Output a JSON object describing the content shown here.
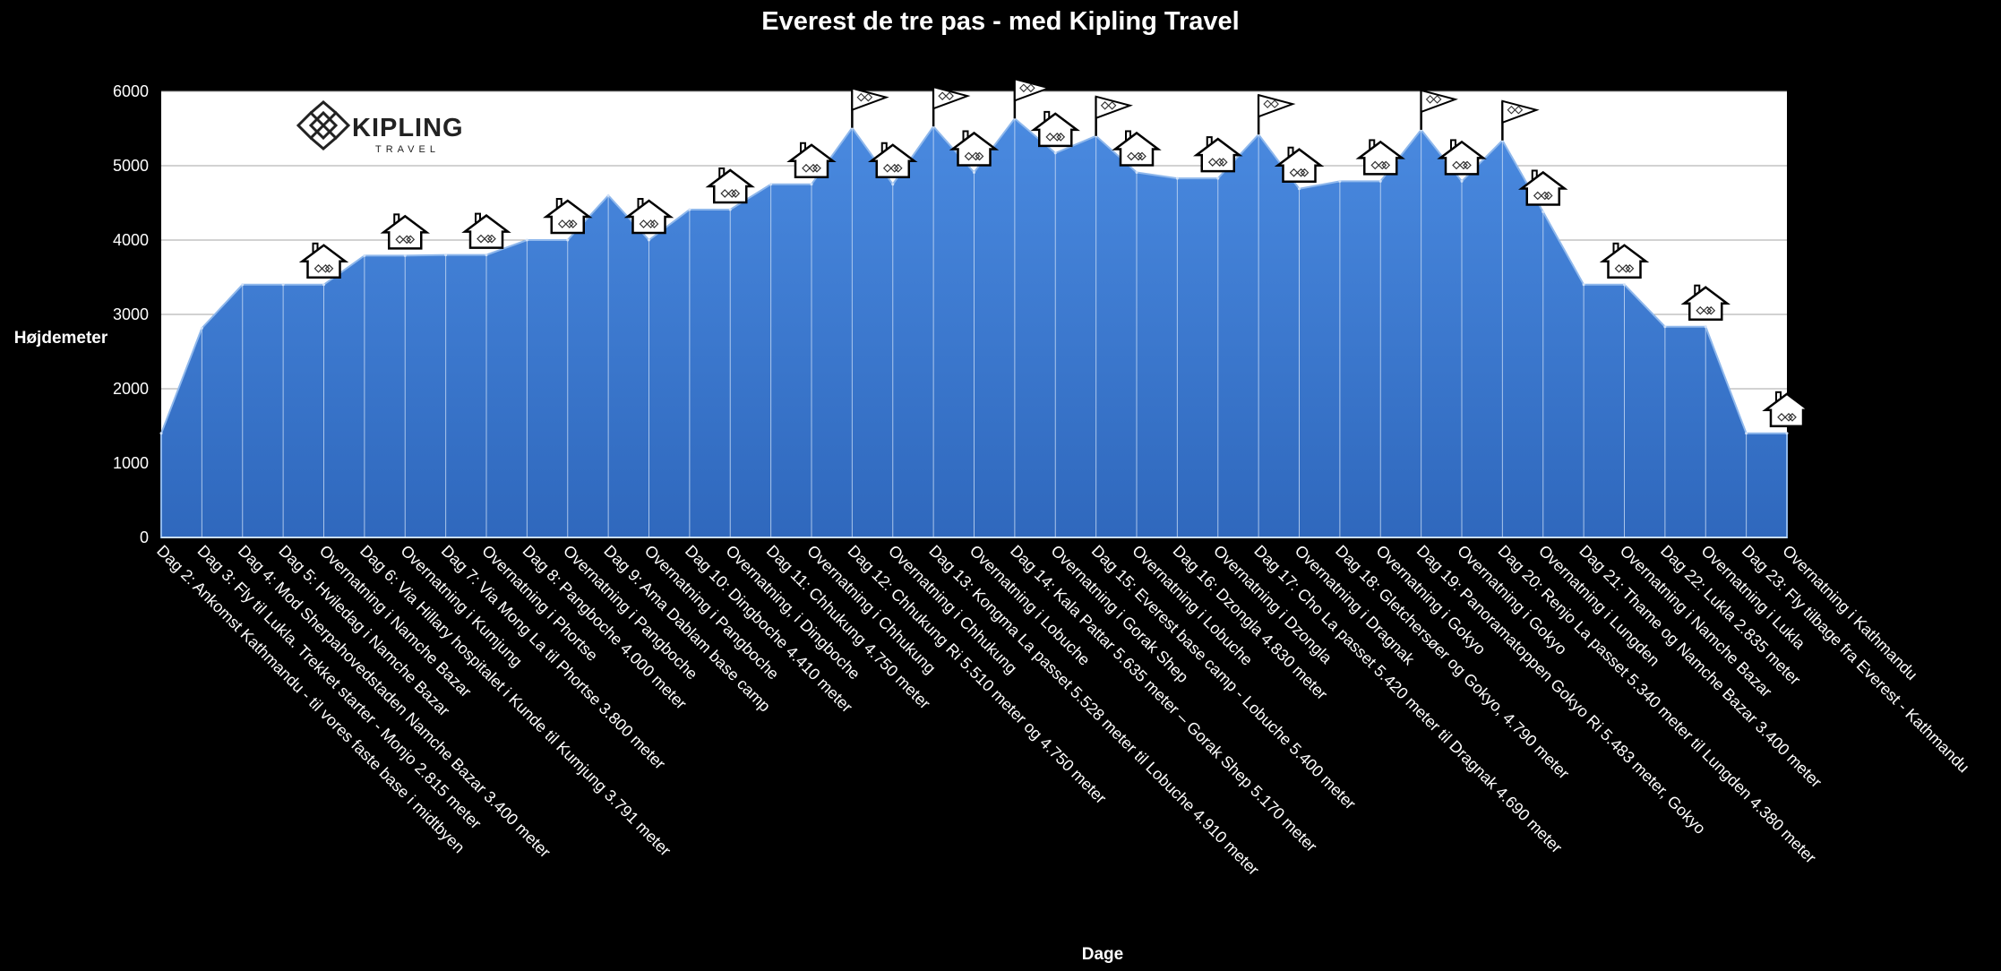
{
  "chart_data": {
    "type": "area",
    "title": "Everest de tre pas - med Kipling Travel",
    "xlabel": "Dage",
    "ylabel": "Højdemeter",
    "ylim": [
      0,
      6000
    ],
    "yticks": [
      0,
      1000,
      2000,
      3000,
      4000,
      5000,
      6000
    ],
    "grid": true,
    "color": "#3a7bd5",
    "logo": {
      "main": "KIPLING",
      "sub": "TRAVEL"
    },
    "categories": [
      "Dag 2: Ankomst Kathmandu - til vores faste base i midtbyen",
      "Dag 3: Fly til Lukla. Trekket starter - Monjo 2.815 meter",
      "Dag 4: Mod Sherpahovedstaden Namche Bazar 3.400 meter",
      "Dag 5: Hviledag i Namche Bazar",
      "Overnatning i Namche Bazar",
      "Dag 6: Via Hillary hospitalet i Kunde til Kumjung 3.791 meter",
      "Overnatning i Kumjung",
      "Dag 7: Via Mong La til Phortse 3.800 meter",
      "Overnatning i Phortse",
      "Dag 8: Pangboche 4.000 meter",
      "Overnatning i Pangboche",
      "Dag 9: Ama Dablam base camp",
      "Overnatning i Pangboche",
      "Dag 10: Dingboche 4.410 meter",
      "Overnatning, i Dingboche",
      "Dag 11: Chhukung 4.750 meter",
      "Overnatning i Chhukung",
      "Dag 12: Chhukung Ri 5.510 meter og 4.750 meter",
      "Overnatning i Chhukung",
      "Dag 13: Kongma La passet 5.528 meter til Lobuche 4.910 meter",
      "Overnatning i Lobuche",
      "Dag 14: Kala Pattar 5.635 meter – Gorak Shep 5.170 meter",
      "Overnatning i Gorak Shep",
      "Dag 15: Everest base camp - Lobuche 5.400 meter",
      "Overnatning i Lobuche",
      "Dag 16: Dzongla 4.830 meter",
      "Overnatning i Dzongla",
      "Dag 17: Cho La passet 5.420 meter til Dragnak 4.690 meter",
      "Overnatning i Dragnak",
      "Dag 18: Gletchersøer og Gokyo, 4.790 meter",
      "Overnatning i Gokyo",
      "Dag 19: Panoramatoppen Gokyo Ri 5.483 meter, Gokyo",
      "Overnatning i Gokyo",
      "Dag 20: Renjo La passet 5.340 meter til Lungden 4.380 meter",
      "Overnatning i Lungden",
      "Dag 21: Thame og Namche Bazar 3.400 meter",
      "Overnatning i Namche Bazar",
      "Dag 22: Lukla 2.835 meter",
      "Overnatning i Lukla",
      "Dag 23: Fly tilbage fra Everest - Kathmandu",
      "Overnatning i Kathmandu"
    ],
    "values": [
      1400,
      2815,
      3400,
      3400,
      3400,
      3791,
      3791,
      3800,
      3800,
      4000,
      4000,
      4600,
      4000,
      4410,
      4410,
      4750,
      4750,
      5510,
      4750,
      5528,
      4910,
      5635,
      5170,
      5400,
      4910,
      4830,
      4830,
      5420,
      4690,
      4790,
      4790,
      5483,
      4790,
      5340,
      4380,
      3400,
      3400,
      2835,
      2835,
      1400,
      1400
    ],
    "markers": {
      "flag_indices": [
        17,
        19,
        21,
        23,
        27,
        31,
        33
      ],
      "hut_indices": [
        4,
        6,
        8,
        10,
        12,
        14,
        16,
        18,
        20,
        22,
        24,
        26,
        28,
        30,
        32,
        34,
        36,
        38,
        40
      ]
    }
  }
}
